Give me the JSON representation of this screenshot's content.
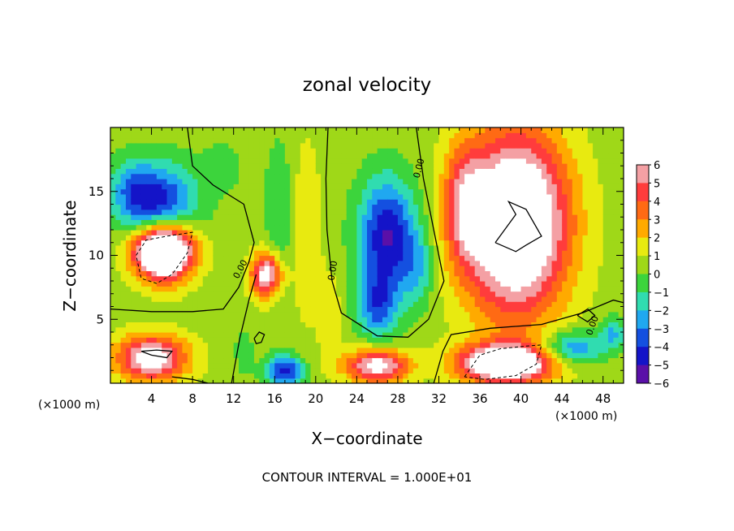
{
  "chart_data": {
    "type": "heatmap",
    "title": "zonal velocity",
    "xlabel": "X−coordinate",
    "ylabel": "Z−coordinate",
    "x_unit_left": "(×1000 m)",
    "x_unit_right": "(×1000 m)",
    "xlim": [
      0,
      50
    ],
    "ylim": [
      0,
      20
    ],
    "x_ticks": [
      4,
      8,
      12,
      16,
      20,
      24,
      28,
      32,
      36,
      40,
      44,
      48
    ],
    "y_ticks": [
      5,
      10,
      15
    ],
    "contour_labels": [
      "0.00",
      "0.00",
      "0.00",
      "0.00"
    ],
    "footer": "CONTOUR INTERVAL = 1.000E+01",
    "colorbar": {
      "range": [
        -6,
        6
      ],
      "tick_labels": [
        "6",
        "5",
        "4",
        "3",
        "2",
        "1",
        "0",
        "−1",
        "−2",
        "−3",
        "−4",
        "−5",
        "−6"
      ],
      "colors": [
        "#f4a0a4",
        "#ff3c3c",
        "#ff6a14",
        "#ffaa00",
        "#e8ea10",
        "#9fd818",
        "#3cd43c",
        "#30dcb0",
        "#20a8f0",
        "#1450e0",
        "#1414c8",
        "#5a10a8",
        "#000000"
      ]
    },
    "field": {
      "background": 0.5,
      "features": [
        {
          "x": 4.5,
          "z": 14.0,
          "sx": 3.8,
          "sz": 3.2,
          "v": -5.3
        },
        {
          "x": 2.0,
          "z": 15.5,
          "sx": 2.0,
          "sz": 2.0,
          "v": -1.5
        },
        {
          "x": 27.0,
          "z": 11.5,
          "sx": 2.8,
          "sz": 4.5,
          "v": -5.6
        },
        {
          "x": 26.0,
          "z": 6.0,
          "sx": 2.0,
          "sz": 2.5,
          "v": -3.5
        },
        {
          "x": 30.0,
          "z": 9.0,
          "sx": 1.5,
          "sz": 3.0,
          "v": -2.0
        },
        {
          "x": 45.0,
          "z": 2.8,
          "sx": 3.0,
          "sz": 1.3,
          "v": -3.8
        },
        {
          "x": 49.0,
          "z": 4.0,
          "sx": 1.2,
          "sz": 1.3,
          "v": -2.5
        },
        {
          "x": 17.0,
          "z": 1.0,
          "sx": 1.8,
          "sz": 1.2,
          "v": -5.0
        },
        {
          "x": 16.5,
          "z": 13.0,
          "sx": 1.5,
          "sz": 6.0,
          "v": -1.5
        },
        {
          "x": 11.0,
          "z": 17.0,
          "sx": 2.0,
          "sz": 2.0,
          "v": -1.0
        },
        {
          "x": 5.0,
          "z": 10.5,
          "sx": 3.0,
          "sz": 2.0,
          "v": 9.5
        },
        {
          "x": 5.5,
          "z": 10.0,
          "sx": 2.5,
          "sz": 2.5,
          "v": 3.0
        },
        {
          "x": 39.5,
          "z": 12.5,
          "sx": 5.0,
          "sz": 7.0,
          "v": 9.5
        },
        {
          "x": 34.5,
          "z": 14.0,
          "sx": 2.0,
          "sz": 4.5,
          "v": 3.5
        },
        {
          "x": 38.5,
          "z": 1.6,
          "sx": 4.5,
          "sz": 1.5,
          "v": 9.0
        },
        {
          "x": 4.0,
          "z": 2.0,
          "sx": 3.5,
          "sz": 1.8,
          "v": 6.5
        },
        {
          "x": 15.2,
          "z": 8.5,
          "sx": 1.5,
          "sz": 1.8,
          "v": 6.5
        },
        {
          "x": 26.0,
          "z": 1.4,
          "sx": 3.0,
          "sz": 1.3,
          "v": 6.5
        },
        {
          "x": 19.0,
          "z": 12.0,
          "sx": 1.5,
          "sz": 7.0,
          "v": 1.5
        },
        {
          "x": 13.0,
          "z": 2.5,
          "sx": 1.0,
          "sz": 2.0,
          "v": -1.0
        },
        {
          "x": 21.5,
          "z": 5.0,
          "sx": 1.2,
          "sz": 4.0,
          "v": 1.2
        }
      ]
    },
    "contours": [
      {
        "style": "solid",
        "points": [
          [
            7.5,
            20
          ],
          [
            8,
            17
          ],
          [
            10,
            15.5
          ],
          [
            13,
            14
          ],
          [
            14,
            11
          ],
          [
            13.5,
            9.5
          ],
          [
            12.5,
            7.5
          ],
          [
            11,
            5.8
          ],
          [
            8,
            5.6
          ],
          [
            4,
            5.6
          ],
          [
            0,
            5.8
          ]
        ]
      },
      {
        "style": "solid",
        "points": [
          [
            21.2,
            20
          ],
          [
            21,
            16
          ],
          [
            21.1,
            12
          ],
          [
            21.6,
            8
          ],
          [
            22.5,
            5.5
          ],
          [
            26,
            3.7
          ],
          [
            29,
            3.6
          ],
          [
            31,
            5
          ],
          [
            32.5,
            8
          ],
          [
            31.5,
            12
          ],
          [
            30.5,
            16
          ],
          [
            29.8,
            20
          ]
        ]
      },
      {
        "style": "solid",
        "points": [
          [
            31.5,
            0
          ],
          [
            32.4,
            2.5
          ],
          [
            33.2,
            3.8
          ],
          [
            37,
            4.3
          ],
          [
            42,
            4.6
          ],
          [
            46,
            5.5
          ],
          [
            49,
            6.5
          ],
          [
            50,
            6.3
          ]
        ]
      },
      {
        "style": "solid",
        "points": [
          [
            37.5,
            11
          ],
          [
            39.5,
            13.2
          ],
          [
            38.8,
            14.2
          ],
          [
            40.5,
            13.6
          ],
          [
            42,
            11.5
          ],
          [
            40.5,
            10.8
          ],
          [
            39.5,
            10.3
          ],
          [
            37.5,
            11
          ]
        ]
      },
      {
        "style": "dashed",
        "points": [
          [
            2.5,
            10
          ],
          [
            3.5,
            11.2
          ],
          [
            5.5,
            11.5
          ],
          [
            8,
            11.8
          ],
          [
            7.5,
            10.2
          ],
          [
            6,
            8.5
          ],
          [
            4.5,
            7.8
          ],
          [
            3,
            8.2
          ],
          [
            2.5,
            10
          ]
        ]
      },
      {
        "style": "dashed",
        "points": [
          [
            34.5,
            0.5
          ],
          [
            36,
            2.2
          ],
          [
            38,
            2.7
          ],
          [
            40.5,
            2.9
          ],
          [
            42,
            3
          ],
          [
            41.5,
            1.5
          ],
          [
            39.5,
            0.6
          ],
          [
            36.5,
            0.3
          ],
          [
            34.5,
            0.5
          ]
        ]
      },
      {
        "style": "solid",
        "points": [
          [
            3,
            2.5
          ],
          [
            4,
            2.2
          ],
          [
            5.5,
            2
          ],
          [
            6,
            2.5
          ],
          [
            4.5,
            2.6
          ],
          [
            3,
            2.5
          ]
        ]
      },
      {
        "style": "solid",
        "points": [
          [
            14,
            3.5
          ],
          [
            14.5,
            4
          ],
          [
            15,
            3.8
          ],
          [
            14.7,
            3.2
          ],
          [
            14.2,
            3.1
          ],
          [
            14,
            3.5
          ]
        ]
      },
      {
        "style": "solid",
        "points": [
          [
            45.5,
            5.3
          ],
          [
            46.5,
            5.8
          ],
          [
            47.2,
            5.3
          ],
          [
            46.5,
            4.8
          ],
          [
            45.5,
            5.3
          ]
        ]
      },
      {
        "style": "solid",
        "points": [
          [
            6,
            0.5
          ],
          [
            8,
            0.3
          ],
          [
            9.5,
            0
          ]
        ]
      },
      {
        "style": "solid",
        "points": [
          [
            11.8,
            0
          ],
          [
            12.6,
            3.5
          ],
          [
            13.5,
            6.5
          ],
          [
            14.2,
            8.5
          ]
        ]
      }
    ]
  }
}
